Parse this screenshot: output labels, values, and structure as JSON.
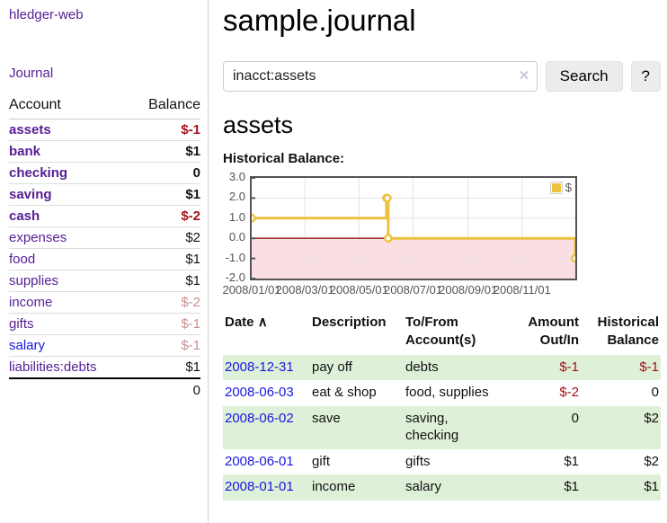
{
  "app": {
    "title": "hledger-web",
    "nav_journal": "Journal"
  },
  "sidebar": {
    "table": {
      "headers": [
        "Account",
        "Balance"
      ],
      "rows": [
        {
          "account": "assets",
          "balance": "$-1",
          "depth": 1,
          "bold": true,
          "balance_style": "negative"
        },
        {
          "account": "bank",
          "balance": "$1",
          "depth": 2,
          "bold": true,
          "balance_style": "normal"
        },
        {
          "account": "checking",
          "balance": "0",
          "depth": 3,
          "bold": true,
          "balance_style": "normal"
        },
        {
          "account": "saving",
          "balance": "$1",
          "depth": 3,
          "bold": true,
          "balance_style": "normal"
        },
        {
          "account": "cash",
          "balance": "$-2",
          "depth": 2,
          "bold": true,
          "balance_style": "negative"
        },
        {
          "account": "expenses",
          "balance": "$2",
          "depth": 1,
          "bold": false,
          "balance_style": "normal"
        },
        {
          "account": "food",
          "balance": "$1",
          "depth": 2,
          "bold": false,
          "balance_style": "normal"
        },
        {
          "account": "supplies",
          "balance": "$1",
          "depth": 2,
          "bold": false,
          "balance_style": "normal"
        },
        {
          "account": "income",
          "balance": "$-2",
          "depth": 1,
          "bold": false,
          "balance_style": "negative-muted"
        },
        {
          "account": "gifts",
          "balance": "$-1",
          "depth": 2,
          "bold": false,
          "balance_style": "negative-muted"
        },
        {
          "account": "salary",
          "balance": "$-1",
          "depth": 2,
          "bold": false,
          "balance_style": "negative-muted",
          "link_style": "unvisited"
        },
        {
          "account": "liabilities:debts",
          "balance": "$1",
          "depth": 1,
          "bold": false,
          "balance_style": "normal"
        }
      ],
      "total": "0"
    }
  },
  "main": {
    "title": "sample.journal",
    "search": {
      "value": "inacct:assets",
      "clear_icon": "×",
      "button": "Search",
      "help_button": "?"
    },
    "account_heading": "assets",
    "chart_label": "Historical Balance:",
    "register": {
      "sort_icon": "∧",
      "columns": [
        {
          "label": "Date",
          "align": "left"
        },
        {
          "label": "Description",
          "align": "left"
        },
        {
          "label": "To/From Account(s)",
          "align": "left"
        },
        {
          "label": "Amount Out/In",
          "align": "right"
        },
        {
          "label": "Historical Balance",
          "align": "right"
        }
      ],
      "rows": [
        {
          "date": "2008-12-31",
          "description": "pay off",
          "accounts": "debts",
          "amount": "$-1",
          "amount_style": "negative",
          "balance": "$-1",
          "balance_style": "negative",
          "shaded": true
        },
        {
          "date": "2008-06-03",
          "description": "eat & shop",
          "accounts": "food, supplies",
          "amount": "$-2",
          "amount_style": "negative",
          "balance": "0",
          "balance_style": "normal",
          "shaded": false
        },
        {
          "date": "2008-06-02",
          "description": "save",
          "accounts": "saving, checking",
          "amount": "0",
          "amount_style": "normal",
          "balance": "$2",
          "balance_style": "normal",
          "shaded": true
        },
        {
          "date": "2008-06-01",
          "description": "gift",
          "accounts": "gifts",
          "amount": "$1",
          "amount_style": "normal",
          "balance": "$2",
          "balance_style": "normal",
          "shaded": false
        },
        {
          "date": "2008-01-01",
          "description": "income",
          "accounts": "salary",
          "amount": "$1",
          "amount_style": "normal",
          "balance": "$1",
          "balance_style": "normal",
          "shaded": true
        }
      ]
    }
  },
  "chart_data": {
    "type": "line",
    "style": "step",
    "title": "Historical Balance",
    "series": [
      {
        "name": "$",
        "color": "#edc240",
        "points": [
          [
            "2008-01-01",
            1
          ],
          [
            "2008-06-01",
            2
          ],
          [
            "2008-06-02",
            2
          ],
          [
            "2008-06-03",
            0
          ],
          [
            "2008-12-31",
            -1
          ]
        ]
      }
    ],
    "x_range": [
      "2008-01-01",
      "2008-12-31"
    ],
    "ylim": [
      -2,
      3
    ],
    "ytick_labels": [
      "3.0",
      "2.0",
      "1.0",
      "0.0",
      "-1.0",
      "-2.0"
    ],
    "xtick_labels": [
      "2008/01/01",
      "2008/03/01",
      "2008/05/01",
      "2008/07/01",
      "2008/09/01",
      "2008/11/01"
    ],
    "grid": true,
    "legend_position": "top-right",
    "negative_region_shaded": true
  },
  "colors": {
    "link_purple": "#561d95",
    "link_blue": "#1818e0",
    "negative": "#a3131a",
    "negative_muted": "#c98f8f",
    "row_shade_green": "#dff0d8",
    "chart_line": "#edc240",
    "chart_marker_fill": "#ffffff",
    "chart_negative_band": "#fbdee1",
    "chart_zero_line": "#8b1212",
    "chart_frame": "#545454",
    "chart_grid": "#e3e3e3"
  }
}
